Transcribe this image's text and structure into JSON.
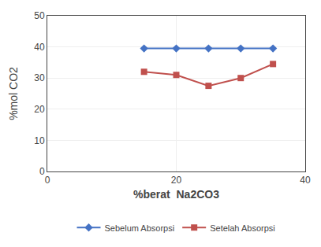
{
  "chart_data": {
    "type": "line",
    "x": [
      15,
      20,
      25,
      30,
      35
    ],
    "series": [
      {
        "name": "Sebelum Absorpsi",
        "color": "#4472C4",
        "marker": "diamond",
        "values": [
          39.5,
          39.5,
          39.5,
          39.5,
          39.5
        ]
      },
      {
        "name": "Setelah Absorpsi",
        "color": "#C0504D",
        "marker": "square",
        "values": [
          32.0,
          31.0,
          27.5,
          30.0,
          34.5
        ]
      }
    ],
    "xlabel": "%berat  Na2CO3",
    "ylabel": "%mol CO2",
    "xlim": [
      0,
      40
    ],
    "ylim": [
      0,
      50
    ],
    "xticks": [
      0,
      20,
      40
    ],
    "yticks": [
      0,
      10,
      20,
      30,
      40,
      50
    ],
    "grid": true,
    "legend": "bottom"
  }
}
